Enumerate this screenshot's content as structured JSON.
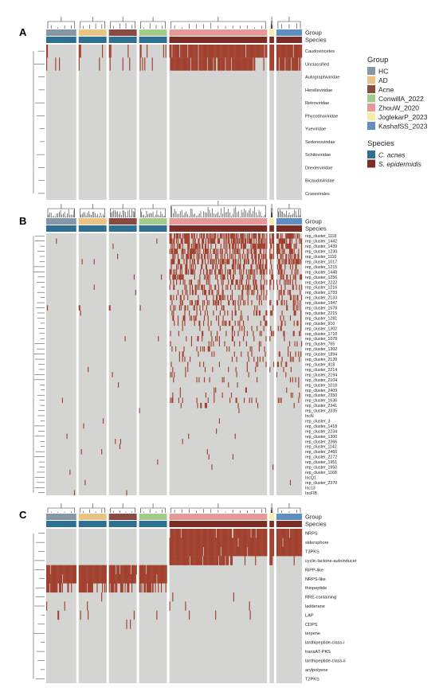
{
  "chart_data": [
    {
      "type": "heatmap",
      "panel": "A",
      "annotation_rows": [
        "Group",
        "Species"
      ],
      "rows": [
        "Caudoviricetes",
        "Unclassified",
        "Autographiviridae",
        "Herelleviridae",
        "Retroviridae",
        "Phycodnaviridae",
        "Yueviridae",
        "Sedoreoviridae",
        "Schitoviridae",
        "Drexlerviridae",
        "Bicaudaviridae",
        "Crassvirales"
      ],
      "column_blocks": [
        {
          "group": "HC",
          "species": "C. acnes",
          "columns": 40,
          "present_rows": [
            0,
            1
          ]
        },
        {
          "group": "AD",
          "species": "C. acnes",
          "columns": 37,
          "present_rows": [
            0,
            1
          ]
        },
        {
          "group": "Acne",
          "species": "C. acnes",
          "columns": 37,
          "present_rows": [
            0,
            1
          ]
        },
        {
          "group": "ConwillA_2022",
          "species": "C. acnes",
          "columns": 37,
          "present_rows": [
            0,
            1
          ]
        },
        {
          "group": "ZhouW_2020",
          "species": "S. epidermidis",
          "columns": 130,
          "present_rows": [
            0,
            1
          ]
        },
        {
          "group": "JoglekarP_2023",
          "species": "S. epidermidis",
          "columns": 6,
          "present_rows": [
            0,
            1
          ]
        },
        {
          "group": "KashafSS_2023",
          "species": "S. epidermidis",
          "columns": 34,
          "present_rows": [
            0,
            1
          ]
        }
      ]
    },
    {
      "type": "heatmap",
      "panel": "B",
      "annotation_rows": [
        "Group",
        "Species"
      ],
      "rows": [
        "rep_cluster_1118",
        "rep_cluster_1442",
        "rep_cluster_1439",
        "rep_cluster_1230",
        "rep_cluster_1110",
        "rep_cluster_1017",
        "rep_cluster_1215",
        "rep_cluster_1448",
        "rep_cluster_1256",
        "rep_cluster_2222",
        "rep_cluster_1216",
        "rep_cluster_1733",
        "rep_cluster_2133",
        "rep_cluster_1947",
        "rep_cluster_1578",
        "rep_cluster_2215",
        "rep_cluster_1281",
        "rep_cluster_910",
        "rep_cluster_1302",
        "rep_cluster_1710",
        "rep_cluster_1078",
        "rep_cluster_765",
        "rep_cluster_1302",
        "rep_cluster_1894",
        "rep_cluster_2120",
        "rep_cluster_418",
        "rep_cluster_2214",
        "rep_cluster_2194",
        "rep_cluster_2104",
        "rep_cluster_1018",
        "rep_cluster_2409",
        "rep_cluster_2350",
        "rep_cluster_1636",
        "rep_cluster_2341",
        "rep_cluster_2335",
        "IncN",
        "rep_cluster_3",
        "rep_cluster_1418",
        "rep_cluster_2234",
        "rep_cluster_1300",
        "rep_cluster_2366",
        "rep_cluster_1142",
        "rep_cluster_2466",
        "rep_cluster_2272",
        "rep_cluster_1951",
        "rep_cluster_1950",
        "rep_cluster_1168",
        "IncQ1",
        "rep_cluster_2370",
        "Inc13",
        "IncFIB"
      ],
      "column_blocks": [
        {
          "group": "HC",
          "species": "C. acnes",
          "columns": 40
        },
        {
          "group": "AD",
          "species": "C. acnes",
          "columns": 37
        },
        {
          "group": "Acne",
          "species": "C. acnes",
          "columns": 37
        },
        {
          "group": "ConwillA_2022",
          "species": "C. acnes",
          "columns": 37
        },
        {
          "group": "ZhouW_2020",
          "species": "S. epidermidis",
          "columns": 130
        },
        {
          "group": "JoglekarP_2023",
          "species": "S. epidermidis",
          "columns": 6
        },
        {
          "group": "KashafSS_2023",
          "species": "S. epidermidis",
          "columns": 34
        }
      ]
    },
    {
      "type": "heatmap",
      "panel": "C",
      "annotation_rows": [
        "Group",
        "Species"
      ],
      "rows": [
        "NRPS",
        "siderophore",
        "T3PKS",
        "cyclic-lactone-autoinducer",
        "RiPP-like",
        "NRPS-like",
        "thiopeptide",
        "RRE-containing",
        "ladderane",
        "LAP",
        "CDPS",
        "terpene",
        "lanthipeptide-class-i",
        "transAT-PKS",
        "lanthipeptide-class-ii",
        "arylpolyene",
        "T2PKS"
      ],
      "column_blocks": [
        {
          "group": "HC",
          "species": "C. acnes",
          "columns": 40,
          "present_rows": [
            4,
            5,
            6
          ]
        },
        {
          "group": "AD",
          "species": "C. acnes",
          "columns": 37,
          "present_rows": [
            4,
            5,
            6
          ]
        },
        {
          "group": "Acne",
          "species": "C. acnes",
          "columns": 37,
          "present_rows": [
            4,
            5,
            6
          ]
        },
        {
          "group": "ConwillA_2022",
          "species": "C. acnes",
          "columns": 37,
          "present_rows": [
            4,
            5,
            6
          ]
        },
        {
          "group": "ZhouW_2020",
          "species": "S. epidermidis",
          "columns": 130,
          "present_rows": [
            0,
            1,
            2,
            3
          ]
        },
        {
          "group": "JoglekarP_2023",
          "species": "S. epidermidis",
          "columns": 6,
          "present_rows": [
            0,
            1,
            2,
            3
          ]
        },
        {
          "group": "KashafSS_2023",
          "species": "S. epidermidis",
          "columns": 34,
          "present_rows": [
            0,
            1,
            2
          ]
        }
      ]
    }
  ],
  "legend": {
    "group_title": "Group",
    "groups": [
      {
        "label": "HC",
        "color": "#8496a8"
      },
      {
        "label": "AD",
        "color": "#e8c384"
      },
      {
        "label": "Acne",
        "color": "#8a4a44"
      },
      {
        "label": "ConwillA_2022",
        "color": "#a3cc8c"
      },
      {
        "label": "ZhouW_2020",
        "color": "#e59a99"
      },
      {
        "label": "JoglekarP_2023",
        "color": "#f3eea5"
      },
      {
        "label": "KashafSS_2023",
        "color": "#5f8fc0"
      }
    ],
    "species_title": "Species",
    "species": [
      {
        "label": "C. acnes",
        "color": "#2f6f92"
      },
      {
        "label": "S. epidermidis",
        "color": "#7a2e26"
      }
    ]
  },
  "colors": {
    "absent": "#d4d4d2",
    "present": "#a1402e",
    "divider": "#ffffff",
    "dendrogram": "#333333"
  },
  "panel_labels": [
    "A",
    "B",
    "C"
  ]
}
